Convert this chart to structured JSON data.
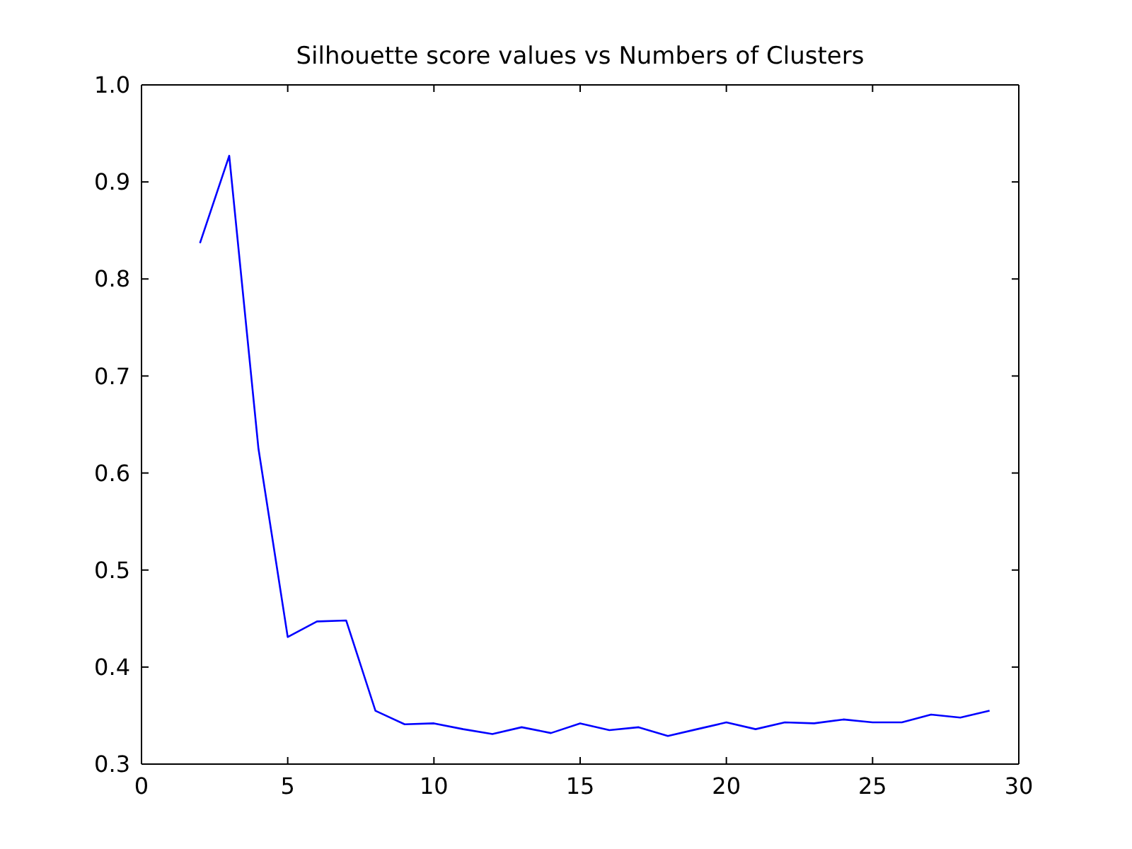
{
  "chart_data": {
    "type": "line",
    "title": "Silhouette score values vs Numbers of Clusters",
    "x": [
      2,
      3,
      4,
      5,
      6,
      7,
      8,
      9,
      10,
      11,
      12,
      13,
      14,
      15,
      16,
      17,
      18,
      19,
      20,
      21,
      22,
      23,
      24,
      25,
      26,
      27,
      28,
      29
    ],
    "values": [
      0.837,
      0.927,
      0.625,
      0.431,
      0.447,
      0.448,
      0.355,
      0.341,
      0.342,
      0.336,
      0.331,
      0.338,
      0.332,
      0.342,
      0.335,
      0.338,
      0.329,
      0.336,
      0.343,
      0.336,
      0.343,
      0.342,
      0.346,
      0.343,
      0.343,
      0.351,
      0.348,
      0.355
    ],
    "color": "#0000ff",
    "line_style": "solid",
    "xlim": [
      0,
      30
    ],
    "xticks": [
      0,
      5,
      10,
      15,
      20,
      25,
      30
    ],
    "ylim": [
      0.3,
      1.0
    ],
    "yticks": [
      0.3,
      0.4,
      0.5,
      0.6,
      0.7,
      0.8,
      0.9,
      {
        "value": 1.0,
        "label": "1.0"
      }
    ]
  }
}
